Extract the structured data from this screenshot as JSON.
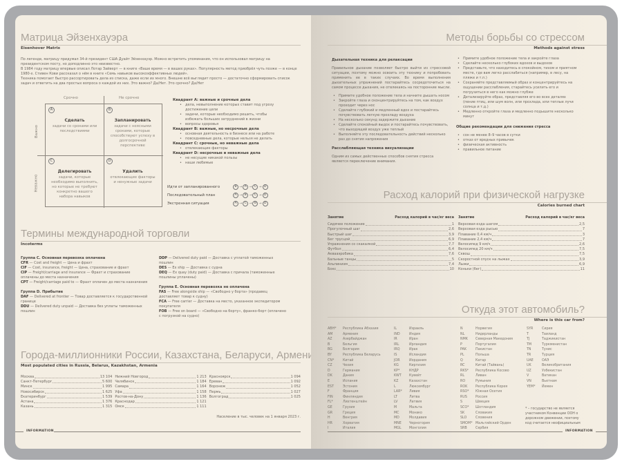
{
  "left": {
    "eisenhower": {
      "title": "Матрица Эйзенхауэра",
      "subtitle": "Eisenhover Matrix",
      "p1": "По легенде, матрицу придумал 34-й президент США Дуайт Эйзенхауэр. Можно встретить упоминания, что он использовал матрицу на президентском посту, но доподлинно это неизвестно.",
      "p2": "В 1984 году матрицу впервые описал Лотар Зайверт — в книге «Ваше время — в ваших руках». Популярность метод приобрёл чуть позже — в конце 1980-х. Стивен Кови рассказал о нём в книге «Семь навыков высокоэффективных людей».",
      "p3": "Техника помогает быстро рассортировать дела из списка, даже если их много. Внешне всё выглядит просто — достаточно сформировать список задач и ответить на два простых вопроса о каждой из них. Это важно? Да/Нет. Это срочно? Да/Нет",
      "col_urgent": "Срочно",
      "col_not_urgent": "Не срочно",
      "row_important": "Важно",
      "row_not_important": "Неважно",
      "quadrants": [
        {
          "letter": "A",
          "action": "Сделать",
          "text": "задачи со сроками или последствиями"
        },
        {
          "letter": "B",
          "action": "Запланировать",
          "text": "задачи с неясными сроками, которые способствуют успеху в долгосрочной перспективе"
        },
        {
          "letter": "C",
          "action": "Делегировать",
          "text": "задачи, которые необходимо выполнить, но которые не требуют конкретно вашего набора навыков"
        },
        {
          "letter": "D",
          "action": "Удалить",
          "text": "отвлекающие факторы и ненужные задачи"
        }
      ],
      "descriptions": [
        {
          "head": "Квадрант A: важные и срочные дела",
          "items": [
            "дела, невыполнение которых ставит под угрозу достижение цели",
            "задачи, которые необходимо решить, чтобы избежать больших затруднений в жизни",
            "вопросы здоровья"
          ]
        },
        {
          "head": "Квадрант B: важные, но несрочные дела",
          "items": [
            "основная деятельность в бизнесе или на работе",
            "повседневные дела, которые нельзя не делать"
          ]
        },
        {
          "head": "Квадрант C: срочные, но неважные дела",
          "items": [
            "отвлекающие факторы"
          ]
        },
        {
          "head": "Квадрант D: несрочные и неважные дела",
          "items": [
            "не несущие никакой пользы",
            "наши любимые"
          ]
        }
      ],
      "sequences": [
        {
          "label": "Идти от запланированного",
          "order": [
            "B",
            "A",
            "C",
            "D"
          ]
        },
        {
          "label": "Последовательный план",
          "order": [
            "A",
            "B",
            "C",
            "D"
          ]
        },
        {
          "label": "Экстренная ситуация",
          "order": [
            "A",
            "C",
            "B",
            "D"
          ]
        }
      ]
    },
    "incoterms": {
      "title": "Термины международной торговли",
      "subtitle": "Incoterms",
      "col1": [
        {
          "head": "Группа C. Основная перевозка оплачена"
        },
        {
          "code": "CFR",
          "text": "— Cost and freight — Цена и фрахт"
        },
        {
          "code": "CIF",
          "text": "— Cost, insurance, freight — Цена, страхование и фрахт"
        },
        {
          "code": "CIP",
          "text": "— Freight/carriage and insurance — Фрахт и страхование оплачены до места назначения"
        },
        {
          "code": "CPT",
          "text": "— Freight/carriage paid to — Фрахт оплачен до места назначения"
        },
        {
          "gap": true
        },
        {
          "head": "Группа D. Прибытие"
        },
        {
          "code": "DAF",
          "text": "— Delivered at frontier — Товар доставляется к государственной границе"
        },
        {
          "code": "DDU",
          "text": "— Delivered duty unpaid — Доставка без уплаты таможенных пошлин"
        }
      ],
      "col2": [
        {
          "code": "DDP",
          "text": "— Delivered duty paid — Доставка с уплатой таможенных пошлин"
        },
        {
          "code": "DES",
          "text": "— Ex ship — Доставка с судна"
        },
        {
          "code": "DEQ",
          "text": "— Ex quay (duty paid) — Доставка с причала (таможенные пошлины уплачены)"
        },
        {
          "gap": true
        },
        {
          "head": "Группа E. Основная перевозка не оплачена"
        },
        {
          "code": "FAS",
          "text": "— Free alongside ship — «Свободно у борта» (продавец доставляет товар к судну)"
        },
        {
          "code": "FCA",
          "text": "— Free carrier — Доставка на место, указанное экспедитором покупателя"
        },
        {
          "code": "FOB",
          "text": "— Free on board — «Свободно на борту», франко-борт (оплачено с погрузкой на судно)"
        }
      ]
    },
    "cities": {
      "title": "Города-миллионники России, Казахстана, Беларуси, Армении",
      "subtitle": "Most populated cities in Russia, Belarus, Kazakhstan, Armenia",
      "columns": [
        [
          [
            "Москва",
            "13 104"
          ],
          [
            "Санкт-Петербург",
            "5 600"
          ],
          [
            "Минск",
            "1 995"
          ],
          [
            "Новосибирск",
            "1 625"
          ],
          [
            "Екатеринбург",
            "1 539"
          ],
          [
            "Астана",
            "1 376"
          ],
          [
            "Казань",
            "1 315"
          ]
        ],
        [
          [
            "Нижний Новгород",
            "1 213"
          ],
          [
            "Челябинск",
            "1 184"
          ],
          [
            "Самара",
            "1 164"
          ],
          [
            "Уфа",
            "1 158"
          ],
          [
            "Ростов-на-Дону",
            "1 136"
          ],
          [
            "Краснодар",
            "1 121"
          ],
          [
            "Омск",
            "1 111"
          ]
        ],
        [
          [
            "Красноярск",
            "1 094"
          ],
          [
            "Ереван",
            "1 092"
          ],
          [
            "Воронеж",
            "1 052"
          ],
          [
            "Пермь",
            "1 027"
          ],
          [
            "Волгоград",
            "1 025"
          ]
        ]
      ],
      "note": "Население в тыс. человек на 1 января 2023 г."
    },
    "footer": "INFORMATION"
  },
  "right": {
    "stress": {
      "title": "Методы борьбы со стрессом",
      "subtitle": "Methods against stress",
      "h_breath": "Дыхательная техника для релаксации",
      "p_breath": "Правильное дыхание позволяет быстро выйти из стрессовой ситуации, поэтому можно освоить эту технику и попробовать применить ее в таких случаях. Во время выполнения дыхательных упражнений постарайтесь сосредоточиться на самом процессе дыхания, не отвлекаясь на посторонние мысли.",
      "breath_items": [
        "Примите удобное положение тела и начните дышать носом",
        "Закройте глаза и сконцентрируйтесь на том, как воздух проходит через нос",
        "Сделайте глубокий и медленный вдох и постарайтесь почувствовать легкую прохладу воздуха",
        "На несколько секунд задержите дыхание",
        "Сделайте спокойный выдох и постарайтесь почувствовать, что выходящий воздух уже теплый",
        "Выполняйте эту последовательность действий несколько раз до снятия напряжения"
      ],
      "h_visual": "Расслабляющая техника визуализации",
      "p_visual": "Одним из самых действенных способов снятия стресса является переключение внимания.",
      "visual_items": [
        "Примите удобное положение тела и закройте глаза",
        "Сделайте несколько глубоких вдохов и выдохов",
        "Представьте, что находитесь в спокойном, тихом и приятном месте, где вам легко расслабиться (например, в лесу, на пляже и т.п.)",
        "Сохраняйте представляемый образ и концентрируйтесь на ощущении расслабления, старайтесь усилить его и погрузиться в него как можно глубже",
        "Детализируйте образ, представляя его во всех деталях (пение птиц, или шум волн, или прохлада, или теплые лучи солнца и т.д.)",
        "Медленно откройте глаза и медленно подышите несколько минут"
      ],
      "h_general": "Общие рекомендации для снижения стресса",
      "general_items": [
        "сон не менее 8–9 часов в сутки",
        "отказ от вредных привычек",
        "физическая активность",
        "правильное питание"
      ]
    },
    "calories": {
      "title": "Расход калорий при физической нагрузке",
      "subtitle": "Calories burned chart",
      "col_activity": "Занятие",
      "col_value": "Расход калорий в час/кг веса",
      "left": [
        [
          "Сидячее положение",
          "1"
        ],
        [
          "Прогулочный шаг",
          "2,6"
        ],
        [
          "Быстрый шаг",
          "3,9"
        ],
        [
          "Бег трусцой",
          "6,9"
        ],
        [
          "Упражнения со скакалкой",
          "7,7"
        ],
        [
          "Футбол",
          "6,4"
        ],
        [
          "Аквааэробика",
          "7,6"
        ],
        [
          "Бальные танцы",
          "5"
        ],
        [
          "Альпинизм",
          "7,4"
        ],
        [
          "Бокс",
          "10"
        ]
      ],
      "right": [
        [
          "Верховая езда шагом",
          "2,5"
        ],
        [
          "Верховая езда рысью",
          "7"
        ],
        [
          "Плавание 0,4 км/ч",
          "3"
        ],
        [
          "Плавание 2,4 км/ч",
          "7"
        ],
        [
          "Велосипед 9 км/ч",
          "2,6"
        ],
        [
          "Велосипед 20 км/ч",
          "7,5"
        ],
        [
          "Сквош",
          "7,5"
        ],
        [
          "Скоростной спуск на лыжах",
          "3,9"
        ],
        [
          "Лыжи",
          "6,9"
        ],
        [
          "Коньки (бег)",
          "11"
        ]
      ]
    },
    "cars": {
      "title": "Откуда этот автомобиль?",
      "subtitle": "Where is this car from?",
      "columns": [
        [
          [
            "ABH*",
            "Республика Абхазия"
          ],
          [
            "AM",
            "Армения"
          ],
          [
            "AZ",
            "Азербайджан"
          ],
          [
            "B",
            "Бельгия"
          ],
          [
            "BG",
            "Болгария"
          ],
          [
            "BY",
            "Республика Беларусь"
          ],
          [
            "CN*",
            "Китай"
          ],
          [
            "CZ",
            "Чехия"
          ],
          [
            "D",
            "Германия"
          ],
          [
            "DK",
            "Дания"
          ],
          [
            "E",
            "Испания"
          ],
          [
            "EST",
            "Эстония"
          ],
          [
            "F",
            "Франция"
          ],
          [
            "FIN",
            "Финляндия"
          ],
          [
            "FL*",
            "Лихтенштейн"
          ],
          [
            "GE",
            "Грузия"
          ],
          [
            "GR",
            "Греция"
          ],
          [
            "H",
            "Венгрия"
          ],
          [
            "HR",
            "Хорватия"
          ],
          [
            "I",
            "Италия"
          ]
        ],
        [
          [
            "IL",
            "Израиль"
          ],
          [
            "IND",
            "Индия"
          ],
          [
            "IR",
            "Иран"
          ],
          [
            "IRL",
            "Ирландия"
          ],
          [
            "IRQ",
            "Ирак"
          ],
          [
            "IS",
            "Исландия"
          ],
          [
            "JOR",
            "Иордания"
          ],
          [
            "KG",
            "Киргизия"
          ],
          [
            "KP*",
            "КНДР"
          ],
          [
            "KWT",
            "Кувейт"
          ],
          [
            "KZ",
            "Казахстан"
          ],
          [
            "L",
            "Люксембург"
          ],
          [
            "LAR*",
            "Ливия"
          ],
          [
            "LT",
            "Литва"
          ],
          [
            "LV",
            "Латвия"
          ],
          [
            "M",
            "Мальта"
          ],
          [
            "MC",
            "Монако"
          ],
          [
            "MD",
            "Молдавия"
          ],
          [
            "MNE",
            "Черногория"
          ],
          [
            "MGL",
            "Монголия"
          ]
        ],
        [
          [
            "N",
            "Норвегия"
          ],
          [
            "NL",
            "Нидерланды"
          ],
          [
            "NMK",
            "Северная Македония"
          ],
          [
            "P",
            "Португалия"
          ],
          [
            "PAK",
            "Пакистан"
          ],
          [
            "PL",
            "Польша"
          ],
          [
            "Q",
            "Катар"
          ],
          [
            "RC",
            "Китай (Тайвань)"
          ],
          [
            "RKS*",
            "Республика Косово"
          ],
          [
            "RL",
            "Ливан"
          ],
          [
            "RO",
            "Румыния"
          ],
          [
            "ROK",
            "Республика Корея"
          ],
          [
            "RSO*",
            "Южная Осетия"
          ],
          [
            "RUS",
            "Россия"
          ],
          [
            "S",
            "Швеция"
          ],
          [
            "SCO*",
            "Шотландия"
          ],
          [
            "SK",
            "Словакия"
          ],
          [
            "SLO",
            "Словения"
          ],
          [
            "SMOM*",
            "Мальтийский Орден"
          ],
          [
            "SRB",
            "Сербия"
          ]
        ],
        [
          [
            "SYR",
            "Сирия"
          ],
          [
            "T",
            "Таиланд"
          ],
          [
            "TJ",
            "Таджикистан"
          ],
          [
            "TM",
            "Туркменистан"
          ],
          [
            "TN",
            "Тунис"
          ],
          [
            "TR",
            "Турция"
          ],
          [
            "UAE",
            "ОАЭ"
          ],
          [
            "UK",
            "Великобритания"
          ],
          [
            "UZ",
            "Узбекистан"
          ],
          [
            "V",
            "Ватикан"
          ],
          [
            "VN",
            "Вьетнам"
          ],
          [
            "YEM*",
            "Йемен"
          ]
        ]
      ],
      "note": "* – государство не является участником Конвенции ООН о дорожном движении, поэтому код считается неофициальным"
    },
    "footer": "INFORMATION"
  }
}
